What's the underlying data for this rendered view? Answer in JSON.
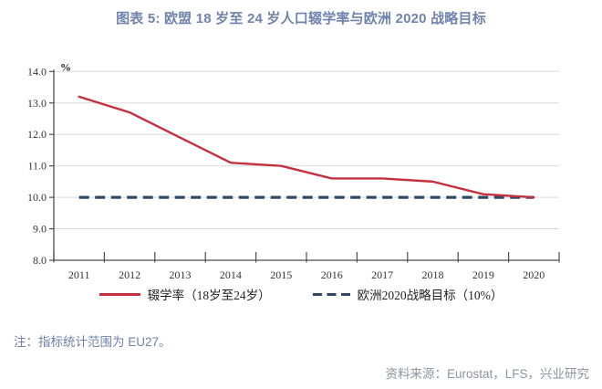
{
  "title": "图表 5: 欧盟 18 岁至 24 岁人口辍学率与欧洲 2020 战略目标",
  "note": "注：指标统计范围为 EU27。",
  "source": "资料来源：Eurostat，LFS，兴业研究",
  "colors": {
    "accent_red": "#C4303E",
    "target_navy": "#2F4A66",
    "grid": "#D9D9D9",
    "axis": "#4D4D4D",
    "title_blue": "#6F83AC",
    "note_blue": "#7081A8",
    "source_gray": "#8D939E",
    "tick_text": "#333333"
  },
  "chart_data": {
    "type": "line",
    "title": "图表 5: 欧盟 18 岁至 24 岁人口辍学率与欧洲 2020 战略目标",
    "x": [
      "2011",
      "2012",
      "2013",
      "2014",
      "2015",
      "2016",
      "2017",
      "2018",
      "2019",
      "2020"
    ],
    "series": [
      {
        "name": "辍学率（18岁至24岁）",
        "values": [
          13.2,
          12.7,
          11.9,
          11.1,
          11.0,
          10.6,
          10.6,
          10.5,
          10.1,
          10.0
        ],
        "style": "solid",
        "color": "#C4303E",
        "data_name": "dropout-rate-line"
      },
      {
        "name": "欧洲2020战略目标（10%）",
        "values": [
          10.0,
          10.0,
          10.0,
          10.0,
          10.0,
          10.0,
          10.0,
          10.0,
          10.0,
          10.0
        ],
        "style": "dashed",
        "color": "#2F4A66",
        "data_name": "europe-2020-target-line"
      }
    ],
    "ylabel_unit": "%",
    "ylim": [
      8.0,
      14.0
    ],
    "ytick_step": 1.0,
    "yticks": [
      "8.0",
      "9.0",
      "10.0",
      "11.0",
      "12.0",
      "13.0",
      "14.0"
    ],
    "grid": "horizontal",
    "legend_position": "bottom"
  }
}
